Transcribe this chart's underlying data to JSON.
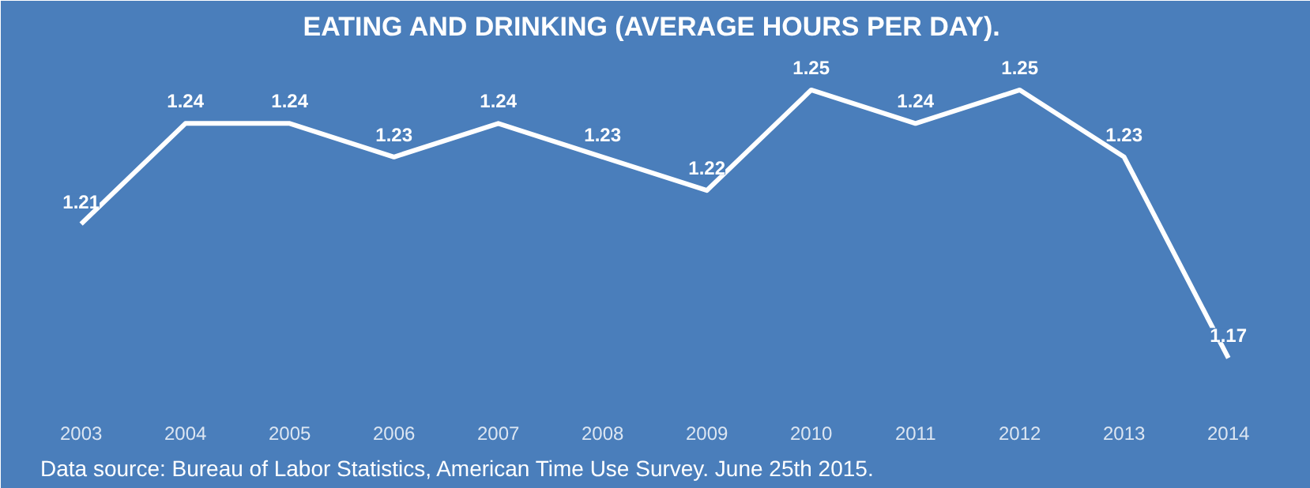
{
  "chart_data": {
    "type": "line",
    "title": "EATING AND DRINKING  (AVERAGE HOURS PER DAY).",
    "categories": [
      "2003",
      "2004",
      "2005",
      "2006",
      "2007",
      "2008",
      "2009",
      "2010",
      "2011",
      "2012",
      "2013",
      "2014"
    ],
    "series": [
      {
        "color": "#ffffff",
        "values": [
          1.21,
          1.24,
          1.24,
          1.23,
          1.24,
          1.23,
          1.22,
          1.25,
          1.24,
          1.25,
          1.23,
          1.17
        ]
      }
    ],
    "ylim": [
      1.155,
      1.262
    ],
    "data_labels": true,
    "grid": false,
    "marker": "none",
    "line_style": "solid",
    "annotations": [
      "Data source: Bureau of Labor Statistics, American Time Use Survey. June 25th 2015."
    ]
  }
}
